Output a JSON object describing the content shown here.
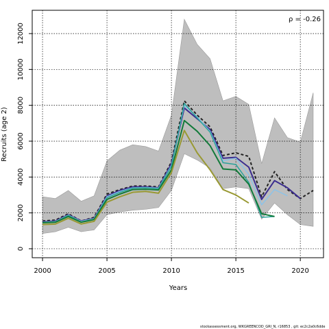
{
  "chart_data": {
    "type": "line",
    "xlabel": "Years",
    "ylabel": "Recruits (age 2)",
    "xlim": [
      1999.2,
      2021.8
    ],
    "ylim": [
      -500,
      13300
    ],
    "x_ticks": [
      2000,
      2005,
      2010,
      2015,
      2020
    ],
    "y_ticks": [
      0,
      2000,
      4000,
      6000,
      8000,
      10000,
      12000
    ],
    "grid": "dotted",
    "annotation": "ρ = -0.26",
    "band": {
      "x": [
        2000,
        2001,
        2002,
        2003,
        2004,
        2005,
        2006,
        2007,
        2008,
        2009,
        2010,
        2011,
        2012,
        2013,
        2014,
        2015,
        2016,
        2017,
        2018,
        2019,
        2020,
        2021
      ],
      "upper": [
        2900,
        2800,
        3250,
        2650,
        2950,
        4900,
        5500,
        5800,
        5700,
        5450,
        7450,
        12800,
        11400,
        10600,
        8250,
        8500,
        8050,
        4750,
        7300,
        6200,
        5950,
        8700
      ],
      "lower": [
        850,
        950,
        1200,
        950,
        1050,
        1900,
        2050,
        2150,
        2200,
        2300,
        3250,
        5300,
        4950,
        4500,
        3350,
        3450,
        3350,
        1650,
        2550,
        1900,
        1350,
        1250
      ],
      "color": "#bebebe"
    },
    "series": [
      {
        "x": [
          2000,
          2001,
          2002,
          2003,
          2004,
          2005,
          2006,
          2007,
          2008,
          2009,
          2010,
          2011,
          2012,
          2013,
          2014,
          2015,
          2016,
          2017,
          2018,
          2019,
          2020,
          2021
        ],
        "values": [
          1550,
          1600,
          1950,
          1550,
          1750,
          3050,
          3300,
          3500,
          3500,
          3450,
          4850,
          8250,
          7450,
          6800,
          5200,
          5350,
          5150,
          2900,
          4300,
          3300,
          2800,
          3250
        ],
        "color": "#222222",
        "style": "dashed",
        "width": 2
      },
      {
        "x": [
          2000,
          2001,
          2002,
          2003,
          2004,
          2005,
          2006,
          2007,
          2008,
          2009,
          2010,
          2011,
          2012,
          2013,
          2014,
          2015,
          2016,
          2017,
          2018,
          2019,
          2020
        ],
        "values": [
          1500,
          1550,
          1900,
          1550,
          1700,
          2950,
          3250,
          3450,
          3450,
          3400,
          4750,
          7850,
          7250,
          6650,
          5050,
          5100,
          4550,
          2750,
          3800,
          3400,
          2800
        ],
        "color": "#3b2d8f",
        "style": "solid",
        "width": 2
      },
      {
        "x": [
          2000,
          2001,
          2002,
          2003,
          2004,
          2005,
          2006,
          2007,
          2008,
          2009,
          2010,
          2011,
          2012,
          2013,
          2014,
          2015,
          2016,
          2017,
          2018,
          2019
        ],
        "values": [
          1480,
          1520,
          1880,
          1530,
          1680,
          2900,
          3200,
          3400,
          3420,
          3380,
          4650,
          8000,
          7350,
          6550,
          4900,
          5050,
          4150,
          2450,
          3300,
          2950
        ],
        "color": "#8cc3e8",
        "style": "solid",
        "width": 1.5
      },
      {
        "x": [
          2000,
          2001,
          2002,
          2003,
          2004,
          2005,
          2006,
          2007,
          2008,
          2009,
          2010,
          2011,
          2012,
          2013,
          2014,
          2015,
          2016,
          2017,
          2018
        ],
        "values": [
          1470,
          1500,
          1860,
          1500,
          1650,
          2850,
          3150,
          3380,
          3400,
          3350,
          4600,
          8100,
          7300,
          6500,
          4800,
          4700,
          3700,
          1750,
          1800
        ],
        "color": "#2aa39a",
        "style": "solid",
        "width": 1.5
      },
      {
        "x": [
          2000,
          2001,
          2002,
          2003,
          2004,
          2005,
          2006,
          2007,
          2008,
          2009,
          2010,
          2011,
          2012,
          2013,
          2014,
          2015,
          2016,
          2017,
          2018
        ],
        "values": [
          1450,
          1480,
          1800,
          1480,
          1630,
          2750,
          3050,
          3300,
          3320,
          3280,
          4400,
          7150,
          6550,
          5750,
          4450,
          4400,
          3600,
          1950,
          1800
        ],
        "color": "#127a3a",
        "style": "solid",
        "width": 2
      },
      {
        "x": [
          2000,
          2001,
          2002,
          2003,
          2004,
          2005,
          2006,
          2007,
          2008,
          2009,
          2010,
          2011,
          2012,
          2013,
          2014,
          2015,
          2016
        ],
        "values": [
          1350,
          1380,
          1700,
          1380,
          1530,
          2600,
          2900,
          3150,
          3200,
          3100,
          4250,
          6600,
          5350,
          4400,
          3300,
          3000,
          2550
        ],
        "color": "#999933",
        "style": "solid",
        "width": 2
      }
    ]
  },
  "footer": "stockassessment.org,  WKGREENCOD_GRI_N,  r16853 ,  git:  ec2c2a0c6dde"
}
